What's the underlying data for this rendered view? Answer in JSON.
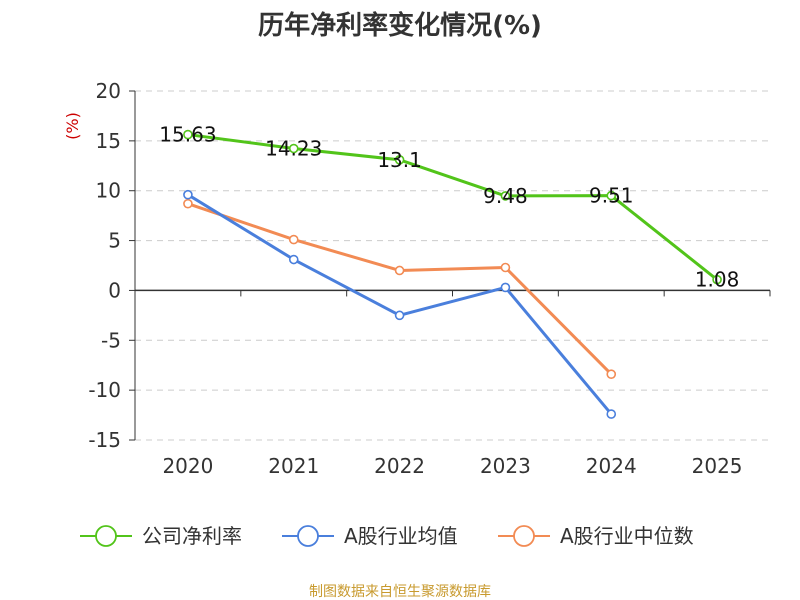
{
  "chart_data": {
    "type": "line",
    "title": "历年净利率变化情况(%)",
    "xlabel": "",
    "ylabel": "(%)",
    "categories": [
      "2020",
      "2021",
      "2022",
      "2023",
      "2024",
      "2025"
    ],
    "ylim": [
      -15,
      20
    ],
    "yticks": [
      20,
      15,
      10,
      5,
      0,
      -5,
      -10,
      -15
    ],
    "grid": true,
    "legend_position": "bottom",
    "series": [
      {
        "name": "公司净利率",
        "color": "#52c41a",
        "values": [
          15.63,
          14.23,
          13.1,
          9.48,
          9.51,
          1.08
        ],
        "labels": [
          "15.63",
          "14.23",
          "13.1",
          "9.48",
          "9.51",
          "1.08"
        ]
      },
      {
        "name": "A股行业均值",
        "color": "#4a7fdc",
        "values": [
          9.6,
          3.1,
          -2.5,
          0.3,
          -12.4,
          null
        ]
      },
      {
        "name": "A股行业中位数",
        "color": "#f28b54",
        "values": [
          8.7,
          5.1,
          2.0,
          2.3,
          -8.4,
          null
        ]
      }
    ]
  },
  "source": "制图数据来自恒生聚源数据库",
  "colors": {
    "axis": "#333333",
    "grid": "#cccccc",
    "ylabel": "#cc0000",
    "source": "#c89a2e"
  }
}
